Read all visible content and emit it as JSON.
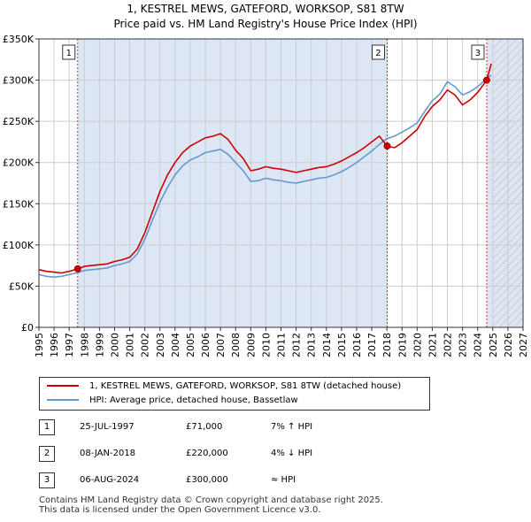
{
  "header": {
    "title": "1, KESTREL MEWS, GATEFORD, WORKSOP, S81 8TW",
    "subtitle": "Price paid vs. HM Land Registry's House Price Index (HPI)"
  },
  "colors": {
    "red": "#cc0000",
    "blue": "#6699cc",
    "shade": "#dde6f5",
    "grid": "#cccccc"
  },
  "chart_data": {
    "type": "line",
    "xlim": [
      1995,
      2027
    ],
    "ylim": [
      0,
      350000
    ],
    "x_ticks": [
      "1995",
      "1996",
      "1997",
      "1998",
      "1999",
      "2000",
      "2001",
      "2002",
      "2003",
      "2004",
      "2005",
      "2006",
      "2007",
      "2008",
      "2009",
      "2010",
      "2011",
      "2012",
      "2013",
      "2014",
      "2015",
      "2016",
      "2017",
      "2018",
      "2019",
      "2020",
      "2021",
      "2022",
      "2023",
      "2024",
      "2025",
      "2026",
      "2027"
    ],
    "y_ticks": [
      {
        "value": 0,
        "label": "£0"
      },
      {
        "value": 50000,
        "label": "£50K"
      },
      {
        "value": 100000,
        "label": "£100K"
      },
      {
        "value": 150000,
        "label": "£150K"
      },
      {
        "value": 200000,
        "label": "£200K"
      },
      {
        "value": 250000,
        "label": "£250K"
      },
      {
        "value": 300000,
        "label": "£300K"
      },
      {
        "value": 350000,
        "label": "£350K"
      }
    ],
    "shaded_ranges": [
      [
        1997.56,
        2018.02
      ],
      [
        2024.6,
        2027
      ]
    ],
    "hatch_from": 2025.0,
    "series": [
      {
        "name": "1, KESTREL MEWS, GATEFORD, WORKSOP, S81 8TW (detached house)",
        "color": "#cc0000",
        "x": [
          1995.0,
          1995.5,
          1996.0,
          1996.5,
          1997.0,
          1997.56,
          1998.0,
          1998.5,
          1999.0,
          1999.5,
          2000.0,
          2000.5,
          2001.0,
          2001.5,
          2002.0,
          2002.5,
          2003.0,
          2003.5,
          2004.0,
          2004.5,
          2005.0,
          2005.5,
          2006.0,
          2006.5,
          2007.0,
          2007.5,
          2008.0,
          2008.5,
          2009.0,
          2009.5,
          2010.0,
          2010.5,
          2011.0,
          2011.5,
          2012.0,
          2012.5,
          2013.0,
          2013.5,
          2014.0,
          2014.5,
          2015.0,
          2015.5,
          2016.0,
          2016.5,
          2017.0,
          2017.5,
          2018.02,
          2018.5,
          2019.0,
          2019.5,
          2020.0,
          2020.5,
          2021.0,
          2021.5,
          2022.0,
          2022.5,
          2023.0,
          2023.5,
          2024.0,
          2024.6,
          2024.9
        ],
        "y": [
          70000,
          68000,
          67000,
          66000,
          68000,
          71000,
          74000,
          75000,
          76000,
          77000,
          80000,
          82000,
          85000,
          95000,
          115000,
          140000,
          165000,
          185000,
          200000,
          212000,
          220000,
          225000,
          230000,
          232000,
          235000,
          228000,
          215000,
          205000,
          190000,
          192000,
          195000,
          193000,
          192000,
          190000,
          188000,
          190000,
          192000,
          194000,
          195000,
          198000,
          202000,
          207000,
          212000,
          218000,
          225000,
          232000,
          220000,
          218000,
          224000,
          232000,
          240000,
          256000,
          268000,
          276000,
          288000,
          282000,
          270000,
          276000,
          285000,
          300000,
          320000
        ]
      },
      {
        "name": "HPI: Average price, detached house, Bassetlaw",
        "color": "#6699cc",
        "x": [
          1995.0,
          1995.5,
          1996.0,
          1996.5,
          1997.0,
          1997.5,
          1998.0,
          1998.5,
          1999.0,
          1999.5,
          2000.0,
          2000.5,
          2001.0,
          2001.5,
          2002.0,
          2002.5,
          2003.0,
          2003.5,
          2004.0,
          2004.5,
          2005.0,
          2005.5,
          2006.0,
          2006.5,
          2007.0,
          2007.5,
          2008.0,
          2008.5,
          2009.0,
          2009.5,
          2010.0,
          2010.5,
          2011.0,
          2011.5,
          2012.0,
          2012.5,
          2013.0,
          2013.5,
          2014.0,
          2014.5,
          2015.0,
          2015.5,
          2016.0,
          2016.5,
          2017.0,
          2017.5,
          2018.0,
          2018.5,
          2019.0,
          2019.5,
          2020.0,
          2020.5,
          2021.0,
          2021.5,
          2022.0,
          2022.5,
          2023.0,
          2023.5,
          2024.0,
          2024.6,
          2024.9
        ],
        "y": [
          64000,
          62000,
          61000,
          62000,
          64000,
          66000,
          69000,
          70000,
          71000,
          72000,
          75000,
          77000,
          80000,
          89000,
          107000,
          130000,
          152000,
          170000,
          185000,
          196000,
          203000,
          207000,
          212000,
          214000,
          216000,
          210000,
          200000,
          190000,
          177000,
          178000,
          181000,
          179000,
          178000,
          176000,
          175000,
          177000,
          179000,
          181000,
          182000,
          185000,
          189000,
          194000,
          200000,
          207000,
          214000,
          222000,
          229000,
          232000,
          237000,
          242000,
          248000,
          262000,
          275000,
          283000,
          298000,
          292000,
          282000,
          286000,
          292000,
          302000,
          306000
        ]
      }
    ],
    "markers": [
      {
        "label": "1",
        "x": 1997.56,
        "y": 71000
      },
      {
        "label": "2",
        "x": 2018.02,
        "y": 220000
      },
      {
        "label": "3",
        "x": 2024.6,
        "y": 300000
      }
    ]
  },
  "legend": {
    "red_label": "1, KESTREL MEWS, GATEFORD, WORKSOP, S81 8TW (detached house)",
    "blue_label": "HPI: Average price, detached house, Bassetlaw"
  },
  "sales": [
    {
      "num": "1",
      "date": "25-JUL-1997",
      "price": "£71,000",
      "hpi": "7% ↑ HPI"
    },
    {
      "num": "2",
      "date": "08-JAN-2018",
      "price": "£220,000",
      "hpi": "4% ↓ HPI"
    },
    {
      "num": "3",
      "date": "06-AUG-2024",
      "price": "£300,000",
      "hpi": "≈ HPI"
    }
  ],
  "footer": {
    "line1": "Contains HM Land Registry data © Crown copyright and database right 2025.",
    "line2": "This data is licensed under the Open Government Licence v3.0."
  }
}
